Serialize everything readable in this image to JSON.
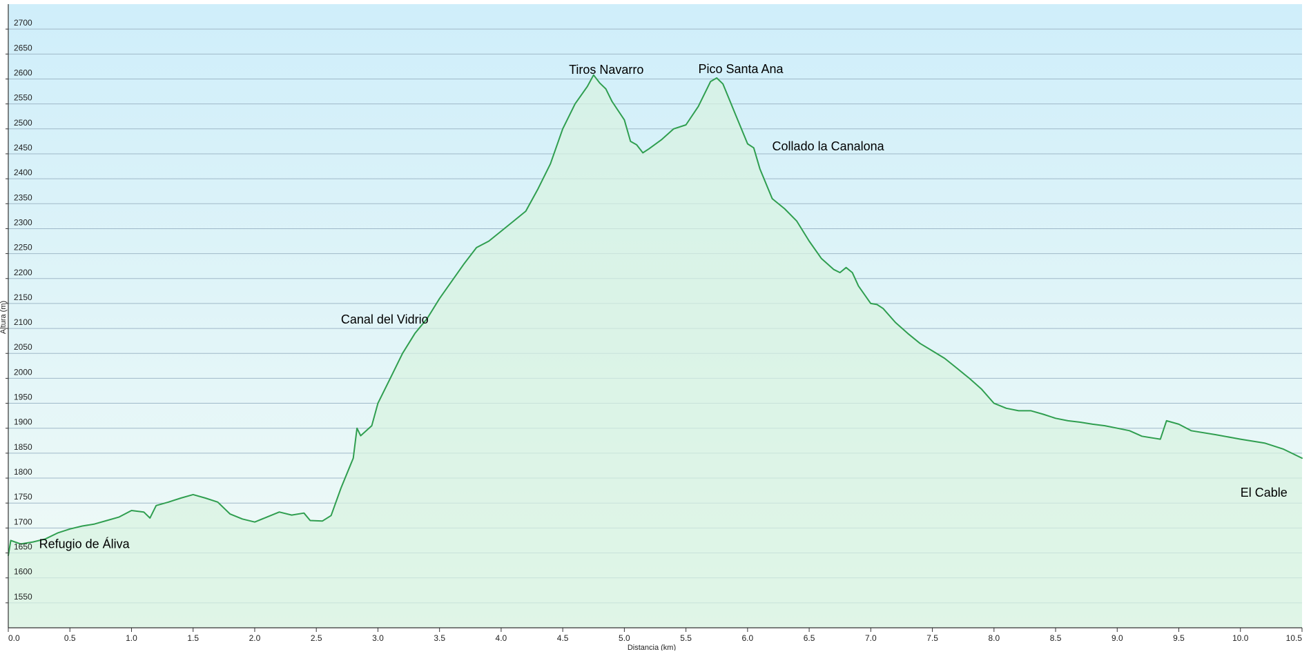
{
  "chart_data": {
    "type": "area",
    "xlabel": "Distancia (km)",
    "ylabel": "Altura (m)",
    "xlim": [
      0,
      10.5
    ],
    "ylim": [
      1500,
      2750
    ],
    "x_ticks": [
      0.0,
      0.5,
      1.0,
      1.5,
      2.0,
      2.5,
      3.0,
      3.5,
      4.0,
      4.5,
      5.0,
      5.5,
      6.0,
      6.5,
      7.0,
      7.5,
      8.0,
      8.5,
      9.0,
      9.5,
      10.0,
      10.5
    ],
    "x_tick_labels": [
      "0.0",
      "0.5",
      "1.0",
      "1.5",
      "2.0",
      "2.5",
      "3.0",
      "3.5",
      "4.0",
      "4.5",
      "5.0",
      "5.5",
      "6.0",
      "6.5",
      "7.0",
      "7.5",
      "8.0",
      "8.5",
      "9.0",
      "9.5",
      "10.0",
      "10.5"
    ],
    "y_ticks": [
      1550,
      1600,
      1650,
      1700,
      1750,
      1800,
      1850,
      1900,
      1950,
      2000,
      2050,
      2100,
      2150,
      2200,
      2250,
      2300,
      2350,
      2400,
      2450,
      2500,
      2550,
      2600,
      2650,
      2700
    ],
    "y_tick_labels": [
      "1550",
      "1600",
      "1650",
      "1700",
      "1750",
      "1800",
      "1850",
      "1900",
      "1950",
      "2000",
      "2050",
      "2100",
      "2150",
      "2200",
      "2250",
      "2300",
      "2350",
      "2400",
      "2450",
      "2500",
      "2550",
      "2600",
      "2650",
      "2700"
    ],
    "grid": true,
    "legend": "none",
    "colors": {
      "line": "#2f9e4f",
      "fill": "#d8f2e0",
      "sky_top": "#cfeefa",
      "sky_bottom": "#f2fbf6",
      "grid": "#9fb8c8",
      "axis": "#333333"
    },
    "series": [
      {
        "points": [
          [
            0.0,
            1645
          ],
          [
            0.02,
            1675
          ],
          [
            0.1,
            1668
          ],
          [
            0.2,
            1672
          ],
          [
            0.3,
            1678
          ],
          [
            0.4,
            1690
          ],
          [
            0.5,
            1698
          ],
          [
            0.6,
            1704
          ],
          [
            0.7,
            1708
          ],
          [
            0.8,
            1715
          ],
          [
            0.9,
            1722
          ],
          [
            1.0,
            1735
          ],
          [
            1.1,
            1732
          ],
          [
            1.15,
            1720
          ],
          [
            1.2,
            1745
          ],
          [
            1.3,
            1752
          ],
          [
            1.4,
            1760
          ],
          [
            1.5,
            1767
          ],
          [
            1.6,
            1760
          ],
          [
            1.7,
            1752
          ],
          [
            1.8,
            1728
          ],
          [
            1.9,
            1718
          ],
          [
            2.0,
            1712
          ],
          [
            2.1,
            1722
          ],
          [
            2.2,
            1732
          ],
          [
            2.3,
            1726
          ],
          [
            2.4,
            1730
          ],
          [
            2.45,
            1715
          ],
          [
            2.55,
            1714
          ],
          [
            2.62,
            1725
          ],
          [
            2.7,
            1780
          ],
          [
            2.8,
            1840
          ],
          [
            2.83,
            1900
          ],
          [
            2.86,
            1885
          ],
          [
            2.95,
            1905
          ],
          [
            3.0,
            1950
          ],
          [
            3.1,
            2000
          ],
          [
            3.2,
            2050
          ],
          [
            3.3,
            2090
          ],
          [
            3.4,
            2120
          ],
          [
            3.5,
            2160
          ],
          [
            3.6,
            2195
          ],
          [
            3.7,
            2230
          ],
          [
            3.8,
            2262
          ],
          [
            3.9,
            2275
          ],
          [
            4.0,
            2295
          ],
          [
            4.1,
            2315
          ],
          [
            4.2,
            2335
          ],
          [
            4.3,
            2380
          ],
          [
            4.4,
            2430
          ],
          [
            4.5,
            2500
          ],
          [
            4.6,
            2550
          ],
          [
            4.7,
            2585
          ],
          [
            4.75,
            2608
          ],
          [
            4.8,
            2592
          ],
          [
            4.85,
            2580
          ],
          [
            4.9,
            2555
          ],
          [
            5.0,
            2518
          ],
          [
            5.05,
            2475
          ],
          [
            5.1,
            2468
          ],
          [
            5.15,
            2452
          ],
          [
            5.2,
            2460
          ],
          [
            5.3,
            2478
          ],
          [
            5.4,
            2500
          ],
          [
            5.5,
            2508
          ],
          [
            5.6,
            2545
          ],
          [
            5.7,
            2595
          ],
          [
            5.75,
            2602
          ],
          [
            5.8,
            2590
          ],
          [
            5.85,
            2560
          ],
          [
            5.9,
            2530
          ],
          [
            6.0,
            2470
          ],
          [
            6.05,
            2462
          ],
          [
            6.1,
            2420
          ],
          [
            6.2,
            2360
          ],
          [
            6.3,
            2340
          ],
          [
            6.4,
            2315
          ],
          [
            6.5,
            2275
          ],
          [
            6.6,
            2240
          ],
          [
            6.7,
            2218
          ],
          [
            6.75,
            2212
          ],
          [
            6.8,
            2222
          ],
          [
            6.85,
            2212
          ],
          [
            6.9,
            2185
          ],
          [
            7.0,
            2150
          ],
          [
            7.05,
            2148
          ],
          [
            7.1,
            2140
          ],
          [
            7.2,
            2112
          ],
          [
            7.3,
            2090
          ],
          [
            7.4,
            2070
          ],
          [
            7.5,
            2055
          ],
          [
            7.6,
            2040
          ],
          [
            7.7,
            2020
          ],
          [
            7.8,
            2000
          ],
          [
            7.9,
            1978
          ],
          [
            8.0,
            1950
          ],
          [
            8.1,
            1940
          ],
          [
            8.2,
            1935
          ],
          [
            8.3,
            1935
          ],
          [
            8.4,
            1928
          ],
          [
            8.5,
            1920
          ],
          [
            8.6,
            1915
          ],
          [
            8.7,
            1912
          ],
          [
            8.8,
            1908
          ],
          [
            8.9,
            1905
          ],
          [
            9.0,
            1900
          ],
          [
            9.1,
            1895
          ],
          [
            9.2,
            1884
          ],
          [
            9.3,
            1880
          ],
          [
            9.35,
            1878
          ],
          [
            9.4,
            1915
          ],
          [
            9.5,
            1908
          ],
          [
            9.6,
            1895
          ],
          [
            9.8,
            1887
          ],
          [
            10.0,
            1878
          ],
          [
            10.2,
            1870
          ],
          [
            10.35,
            1858
          ],
          [
            10.5,
            1840
          ]
        ]
      }
    ],
    "annotations": [
      {
        "text": "Refugio de Áliva",
        "x": 0.25,
        "y": 1660
      },
      {
        "text": "Canal del Vidrio",
        "x": 2.7,
        "y": 2110
      },
      {
        "text": "Tiros Navarro",
        "x": 4.55,
        "y": 2610
      },
      {
        "text": "Pico Santa Ana",
        "x": 5.6,
        "y": 2612
      },
      {
        "text": "Collado la Canalona",
        "x": 6.2,
        "y": 2457
      },
      {
        "text": "El Cable",
        "x": 10.0,
        "y": 1763
      }
    ]
  }
}
